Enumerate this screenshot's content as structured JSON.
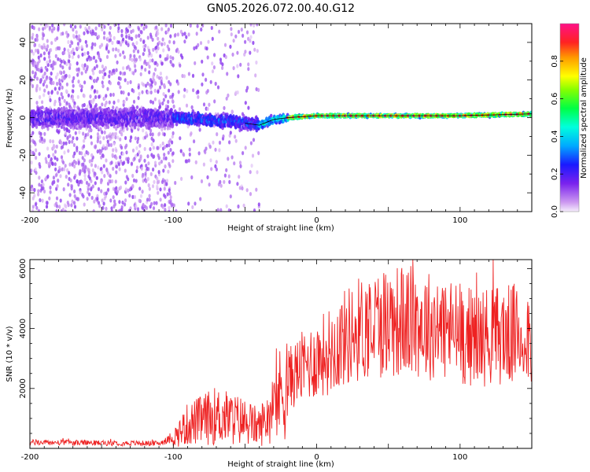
{
  "title": "GN05.2026.072.00.40.G12",
  "chart_data": [
    {
      "type": "heatmap",
      "xlabel": "Height of straight line (km)",
      "ylabel": "Frequency (Hz)",
      "xlim": [
        -200,
        150
      ],
      "ylim": [
        -50,
        50
      ],
      "xticks": [
        -200,
        -100,
        0,
        100
      ],
      "yticks": [
        -40,
        -20,
        0,
        20,
        40
      ],
      "colorbar": {
        "label": "Normalized spectral amplitude",
        "range": [
          0,
          1
        ],
        "ticks": [
          0.0,
          0.2,
          0.4,
          0.6,
          0.8
        ],
        "tick_labels": [
          "0.0",
          "0.2",
          "0.4",
          "0.6",
          "0.8"
        ]
      },
      "ridge": {
        "description": "dominant frequency along height",
        "x": [
          -200,
          -150,
          -100,
          -60,
          -50,
          -40,
          -30,
          -20,
          0,
          50,
          100,
          150
        ],
        "y": [
          0,
          0,
          0,
          -2,
          -3,
          -4,
          -1,
          0,
          1,
          1,
          1,
          2
        ]
      }
    },
    {
      "type": "line",
      "xlabel": "Height of straight line (km)",
      "ylabel": "SNR (10 * v/v)",
      "xlim": [
        -200,
        150
      ],
      "ylim": [
        0,
        6300
      ],
      "xticks": [
        -200,
        -100,
        0,
        100
      ],
      "yticks": [
        2000,
        4000,
        6000
      ],
      "color": "#ee2222",
      "series": [
        {
          "x": [
            -200,
            -150,
            -110,
            -100,
            -90,
            -70,
            -50,
            -40,
            -30,
            -20,
            -10,
            0,
            10,
            20,
            30,
            50,
            70,
            90,
            110,
            130,
            150
          ],
          "values": [
            200,
            180,
            170,
            350,
            800,
            1100,
            900,
            700,
            1400,
            2300,
            2700,
            3000,
            3300,
            3700,
            4000,
            4300,
            4200,
            4000,
            3700,
            3800,
            3800
          ]
        }
      ]
    }
  ]
}
